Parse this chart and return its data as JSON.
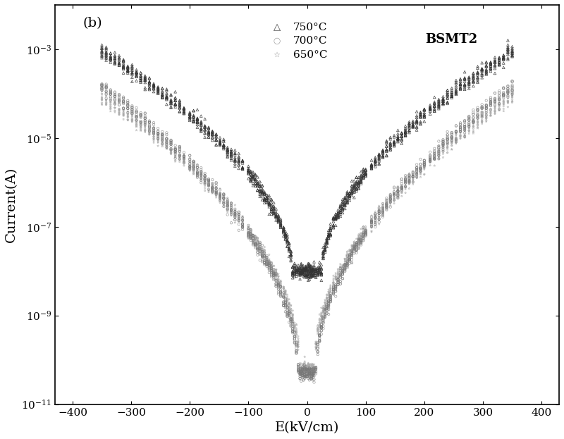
{
  "title_label": "(b)",
  "xlabel": "E(kV/cm)",
  "ylabel": "Current(A)",
  "annotation": "BSMT2",
  "xlim": [
    -430,
    430
  ],
  "ylim_log": [
    -11,
    -2
  ],
  "series": [
    {
      "label": "750°C",
      "marker": "^",
      "color": "#333333",
      "min_current_log": -8.0,
      "knee_E": 25,
      "high_E_current_log": -3.05,
      "exponent": 0.55,
      "spread": 0.08,
      "n_traces": 12,
      "marker_size": 7
    },
    {
      "label": "700°C",
      "marker": "o",
      "color": "#777777",
      "min_current_log": -10.3,
      "knee_E": 15,
      "high_E_current_log": -3.85,
      "exponent": 0.52,
      "spread": 0.08,
      "n_traces": 12,
      "marker_size": 6
    },
    {
      "label": "650°C",
      "marker": "$\\times$",
      "color": "#aaaaaa",
      "min_current_log": -10.2,
      "knee_E": 12,
      "high_E_current_log": -4.1,
      "exponent": 0.5,
      "spread": 0.08,
      "n_traces": 12,
      "marker_size": 5
    }
  ],
  "background_color": "#ffffff",
  "tick_color": "#000000",
  "legend_fontsize": 11,
  "label_fontsize": 14,
  "annotation_fontsize": 13
}
